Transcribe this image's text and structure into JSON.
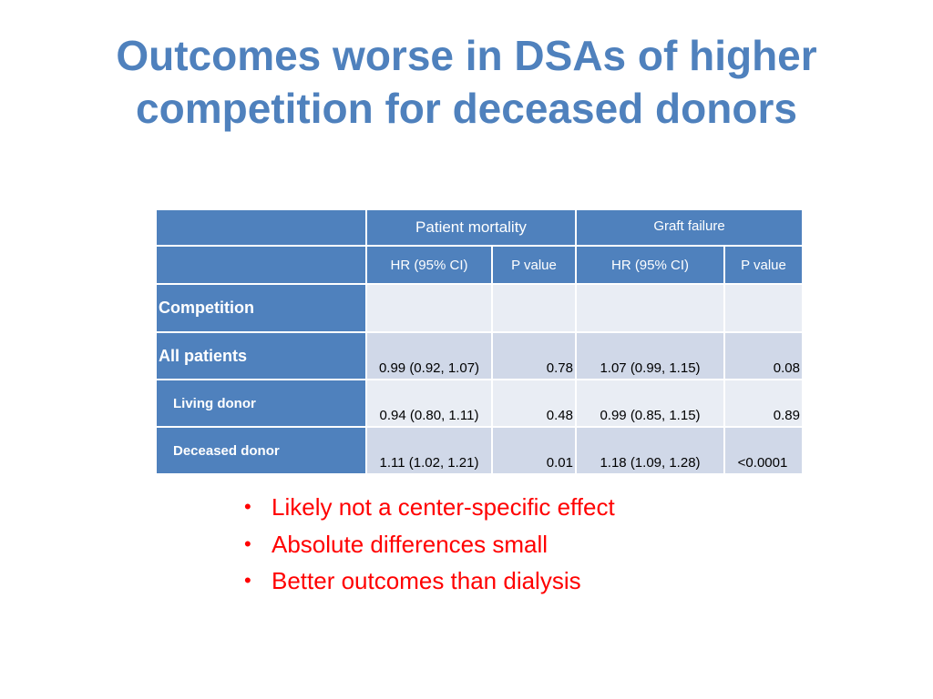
{
  "slide": {
    "title_line1": "Outcomes worse in DSAs of higher",
    "title_line2": "competition for deceased donors"
  },
  "table": {
    "group_headers": {
      "patient_mortality": "Patient mortality",
      "graft_failure": "Graft failure"
    },
    "sub_headers": {
      "pm_hr": "HR (95% CI)",
      "pm_p": "P value",
      "gf_hr": "HR (95% CI)",
      "gf_p": "P value"
    },
    "section_label": "Competition",
    "rows": [
      {
        "label": "All patients",
        "pm_hr": "0.99 (0.92, 1.07)",
        "pm_p": "0.78",
        "gf_hr": "1.07 (0.99, 1.15)",
        "gf_p": "0.08"
      },
      {
        "label": "Living donor",
        "pm_hr": "0.94 (0.80, 1.11)",
        "pm_p": "0.48",
        "gf_hr": "0.99 (0.85, 1.15)",
        "gf_p": "0.89"
      },
      {
        "label": "Deceased donor",
        "pm_hr": "1.11 (1.02, 1.21)",
        "pm_p": "0.01",
        "gf_hr": "1.18 (1.09, 1.28)",
        "gf_p": "<0.0001"
      }
    ]
  },
  "bullets": [
    "Likely not a center-specific effect",
    "Absolute differences small",
    "Better outcomes than dialysis"
  ],
  "bullet_glyph": "•",
  "colors": {
    "title": "#4f81bd",
    "header_fill": "#4f81bd",
    "band_dark": "#d0d8e8",
    "band_light": "#e9edf4",
    "bullet_text": "#ff0000"
  }
}
